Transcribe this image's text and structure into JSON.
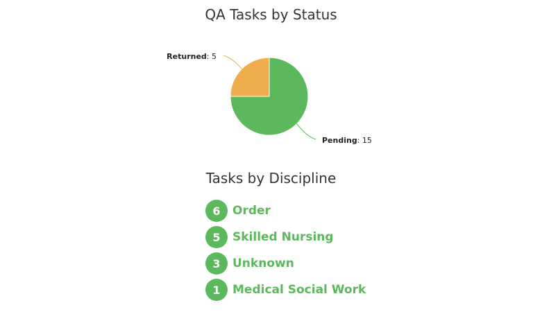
{
  "colors": {
    "pending": "#5cb85c",
    "returned": "#f0ad4e",
    "badge": "#5cb85c",
    "label": "#5cb85c"
  },
  "chart_data": {
    "type": "pie",
    "title": "QA Tasks by Status",
    "slices": [
      {
        "name": "Pending",
        "value": 15,
        "color": "#5cb85c"
      },
      {
        "name": "Returned",
        "value": 5,
        "color": "#f0ad4e"
      }
    ]
  },
  "discipline": {
    "title": "Tasks by Discipline",
    "items": [
      {
        "count": "6",
        "label": "Order"
      },
      {
        "count": "5",
        "label": "Skilled Nursing"
      },
      {
        "count": "3",
        "label": "Unknown"
      },
      {
        "count": "1",
        "label": "Medical Social Work"
      }
    ]
  }
}
